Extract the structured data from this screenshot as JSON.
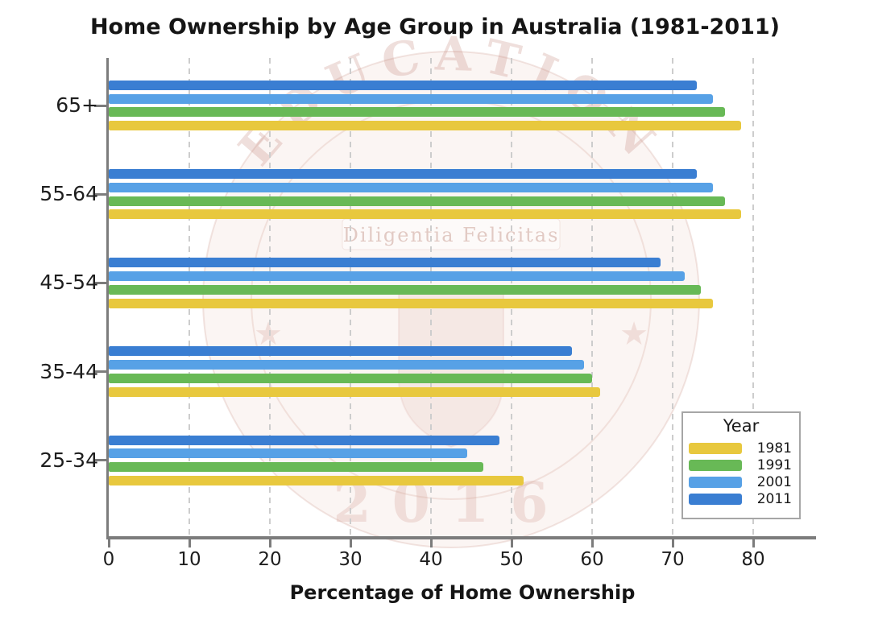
{
  "watermark": {
    "arc_text": "EDUCATION",
    "motto": "Diligentia Felicitas",
    "year": "2016"
  },
  "chart_data": {
    "type": "bar",
    "orientation": "horizontal",
    "title": "Home Ownership by Age Group in Australia (1981-2011)",
    "xlabel": "Percentage of Home Ownership",
    "ylabel": "",
    "categories": [
      "65+",
      "55-64",
      "45-54",
      "35-44",
      "25-34"
    ],
    "series": [
      {
        "name": "1981",
        "color": "#e8c83e",
        "values": [
          78.5,
          78.5,
          75.0,
          61.0,
          51.5
        ]
      },
      {
        "name": "1991",
        "color": "#68b956",
        "values": [
          76.5,
          76.5,
          73.5,
          60.0,
          46.5
        ]
      },
      {
        "name": "2001",
        "color": "#57a1e6",
        "values": [
          75.0,
          75.0,
          71.5,
          59.0,
          44.5
        ]
      },
      {
        "name": "2011",
        "color": "#3a7ed2",
        "values": [
          73.0,
          73.0,
          68.5,
          57.5,
          48.5
        ]
      }
    ],
    "bar_order_top_to_bottom": [
      "2011",
      "2001",
      "1991",
      "1981"
    ],
    "x_ticks": [
      0,
      10,
      20,
      30,
      40,
      50,
      60,
      70,
      80
    ],
    "xlim": [
      0,
      87.5
    ],
    "grid": "vertical-dashed",
    "legend": {
      "title": "Year",
      "position": "lower-right",
      "entries": [
        "1981",
        "1991",
        "2001",
        "2011"
      ]
    }
  }
}
